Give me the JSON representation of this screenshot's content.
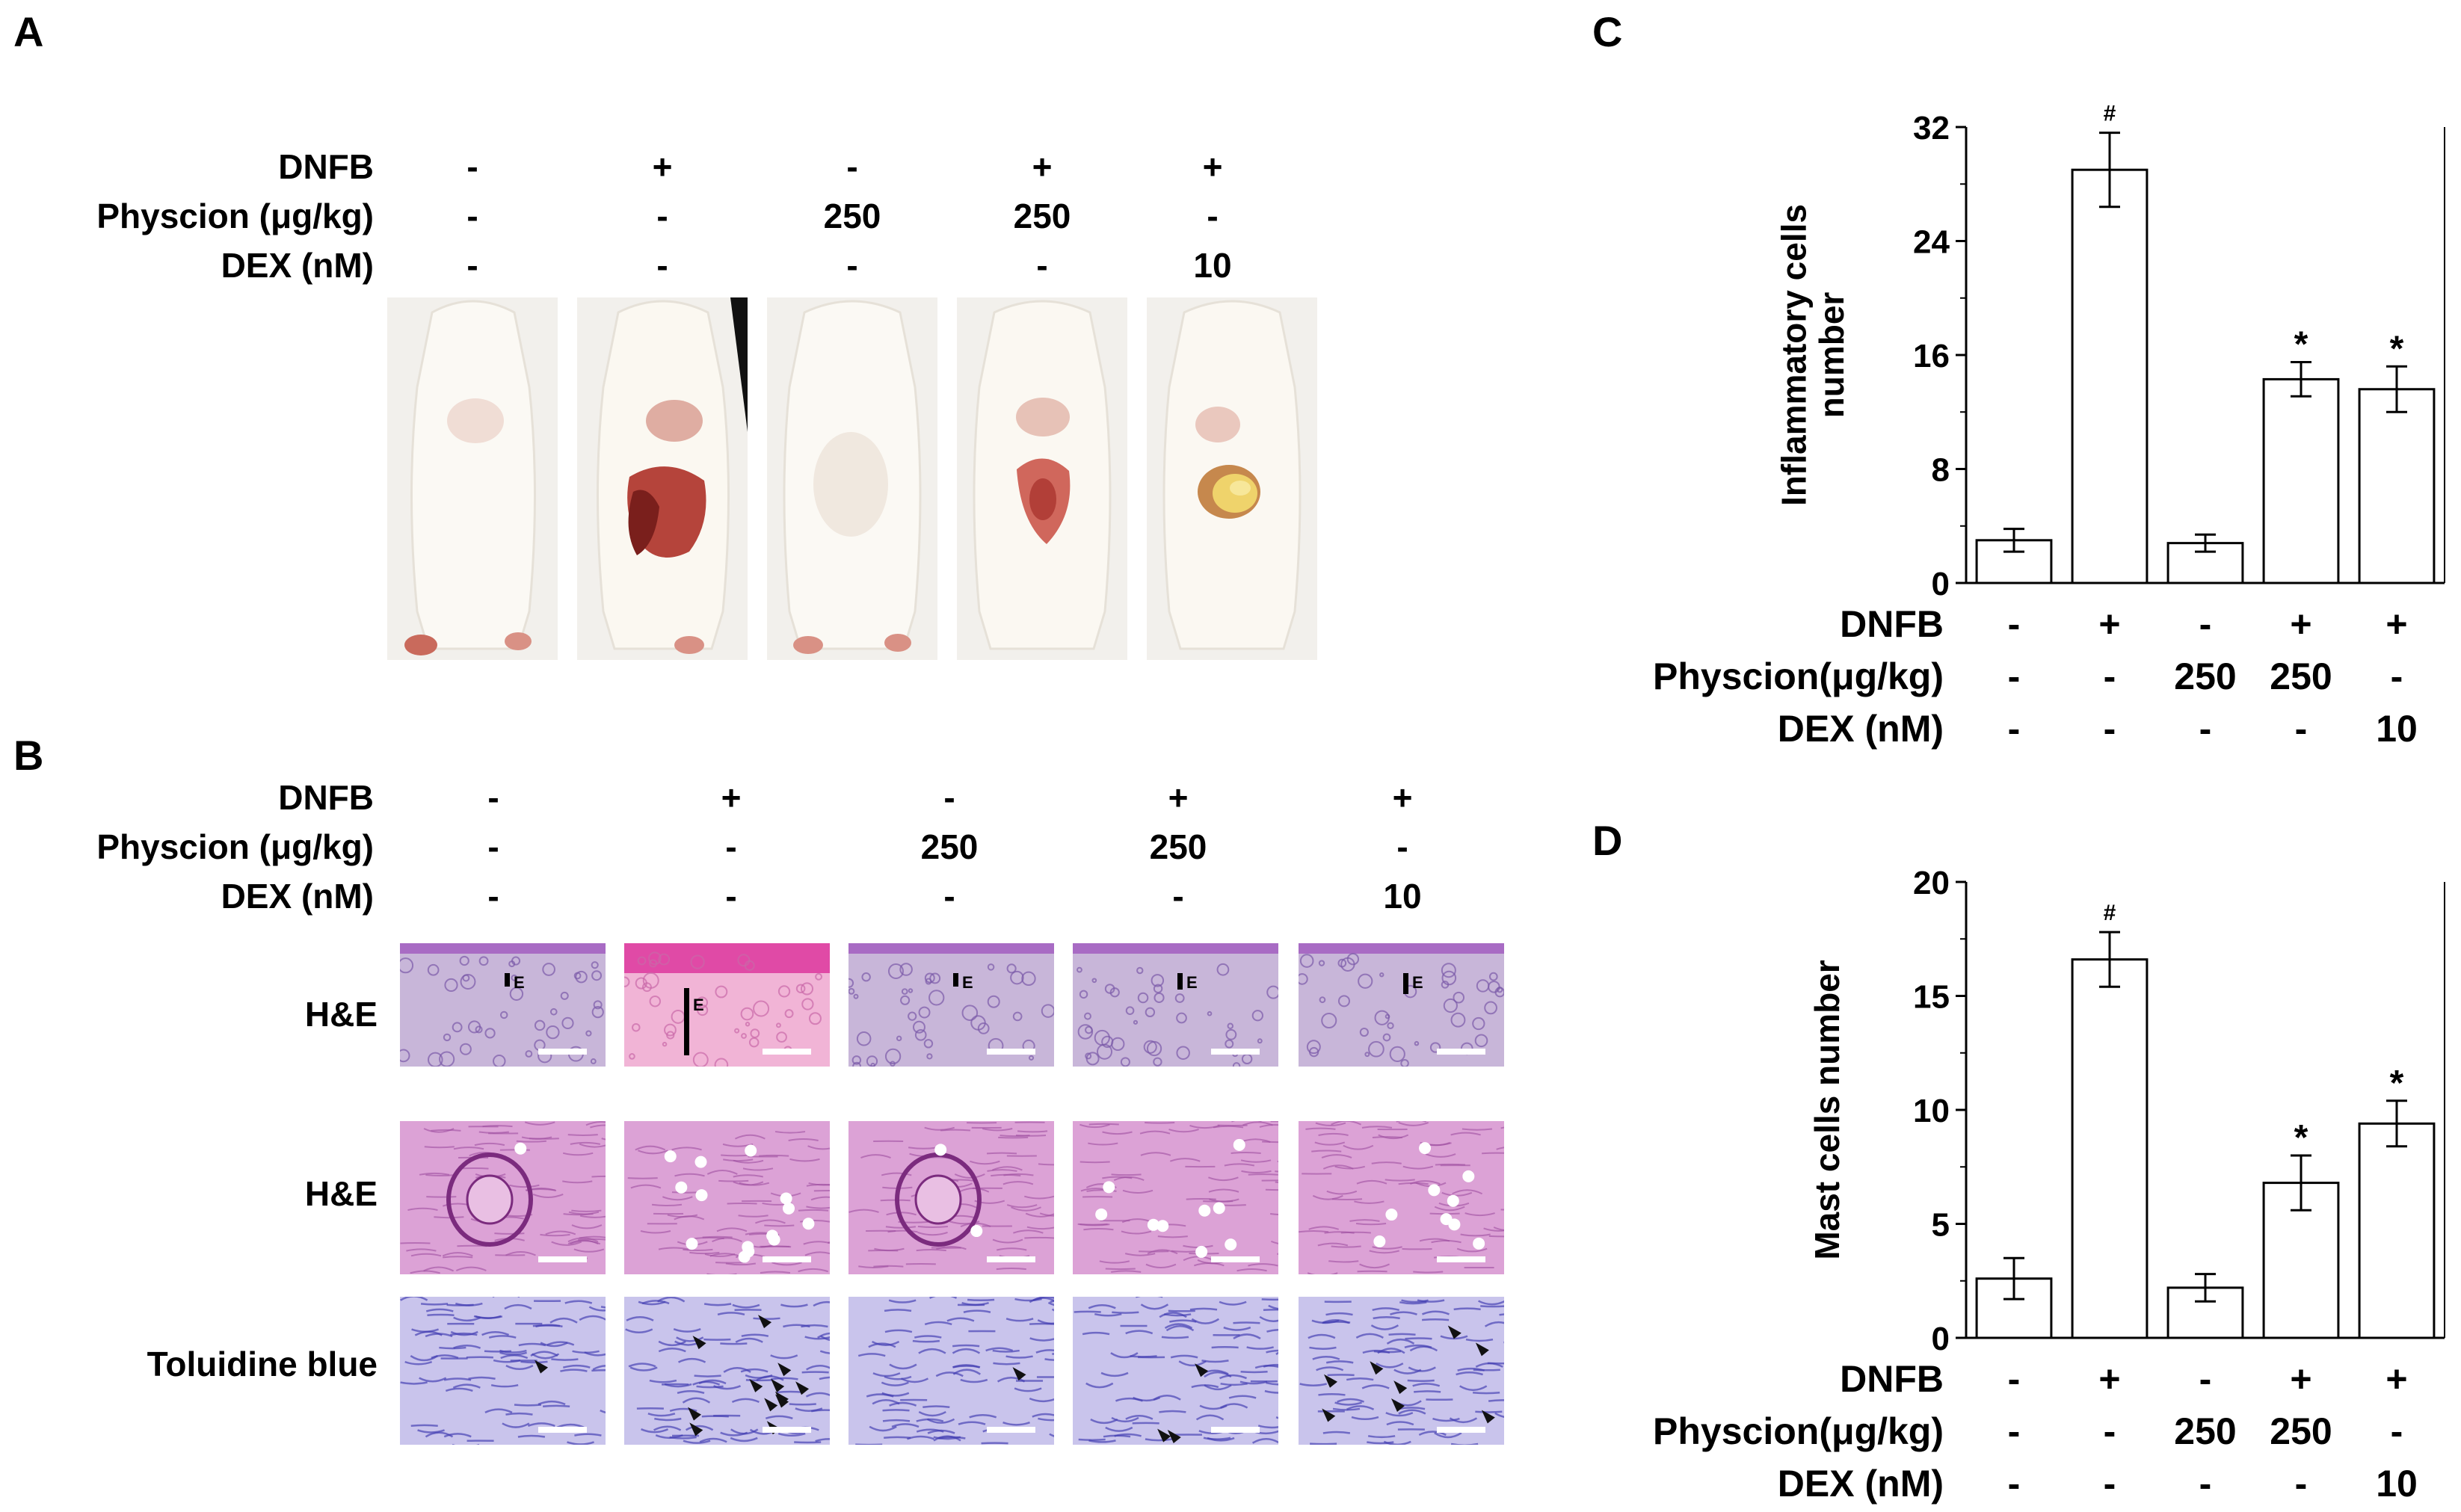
{
  "panel_a": {
    "letter": "A",
    "rows": [
      {
        "label": "DNFB",
        "values": [
          "-",
          "+",
          "-",
          "+",
          "+"
        ]
      },
      {
        "label": "Physcion (μg/kg)",
        "values": [
          "-",
          "-",
          "250",
          "250",
          "-"
        ]
      },
      {
        "label": "DEX (nM)",
        "values": [
          "-",
          "-",
          "-",
          "-",
          "10"
        ]
      }
    ]
  },
  "panel_b": {
    "letter": "B",
    "rows": [
      {
        "label": "DNFB",
        "values": [
          "-",
          "+",
          "-",
          "+",
          "+"
        ]
      },
      {
        "label": "Physcion (μg/kg)",
        "values": [
          "-",
          "-",
          "250",
          "250",
          "-"
        ]
      },
      {
        "label": "DEX (nM)",
        "values": [
          "-",
          "-",
          "-",
          "-",
          "10"
        ]
      }
    ],
    "stain_rows": [
      "H&E",
      "H&E",
      "Toluidine blue"
    ],
    "epidermis_marker": "E"
  },
  "panel_c": {
    "letter": "C",
    "treatments": [
      {
        "label": "DNFB",
        "values": [
          "-",
          "+",
          "-",
          "+",
          "+"
        ]
      },
      {
        "label": "Physcion(μg/kg)",
        "values": [
          "-",
          "-",
          "250",
          "250",
          "-"
        ]
      },
      {
        "label": "DEX (nM)",
        "values": [
          "-",
          "-",
          "-",
          "-",
          "10"
        ]
      }
    ]
  },
  "panel_d": {
    "letter": "D",
    "treatments": [
      {
        "label": "DNFB",
        "values": [
          "-",
          "+",
          "-",
          "+",
          "+"
        ]
      },
      {
        "label": "Physcion(μg/kg)",
        "values": [
          "-",
          "-",
          "250",
          "250",
          "-"
        ]
      },
      {
        "label": "DEX (nM)",
        "values": [
          "-",
          "-",
          "-",
          "-",
          "10"
        ]
      }
    ]
  },
  "chart_data": [
    {
      "type": "bar",
      "panel": "C",
      "ylabel": "Inflammatory cells number",
      "ylim": [
        0,
        32
      ],
      "yticks": [
        "0",
        "8",
        "16",
        "24",
        "32"
      ],
      "categories": [
        "1",
        "2",
        "3",
        "4",
        "5"
      ],
      "values": [
        3.0,
        29.0,
        2.8,
        14.3,
        13.6
      ],
      "errors": [
        0.8,
        2.6,
        0.6,
        1.2,
        1.6
      ],
      "annotations": [
        "",
        "#",
        "",
        "*",
        "*"
      ]
    },
    {
      "type": "bar",
      "panel": "D",
      "ylabel": "Mast cells number",
      "ylim": [
        0,
        20
      ],
      "yticks": [
        "0",
        "5",
        "10",
        "15",
        "20"
      ],
      "categories": [
        "1",
        "2",
        "3",
        "4",
        "5"
      ],
      "values": [
        2.6,
        16.6,
        2.2,
        6.8,
        9.4
      ],
      "errors": [
        0.9,
        1.2,
        0.6,
        1.2,
        1.0
      ],
      "annotations": [
        "",
        "#",
        "",
        "*",
        "*"
      ]
    }
  ]
}
